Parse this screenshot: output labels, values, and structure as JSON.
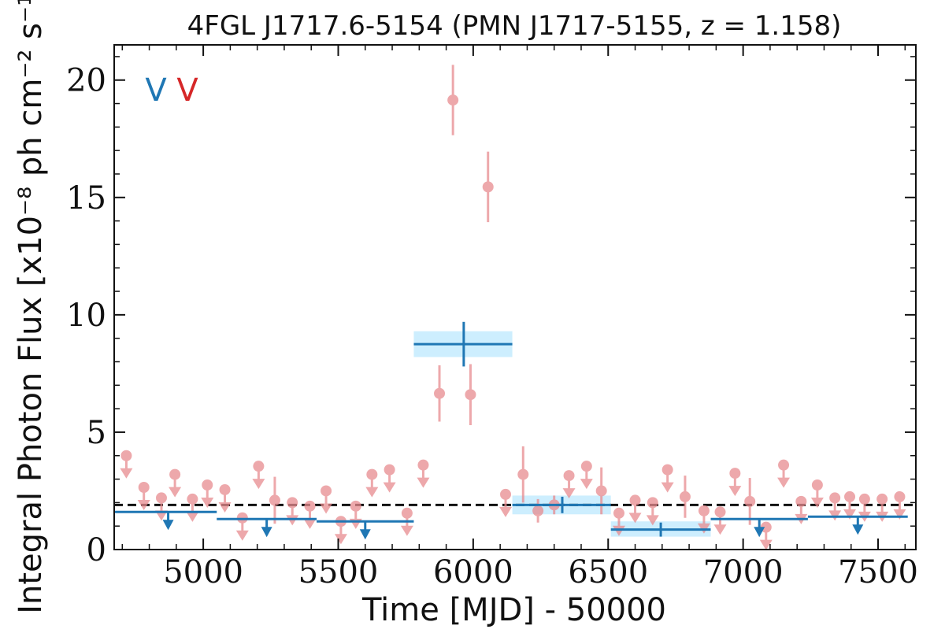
{
  "chart_data": {
    "type": "scatter",
    "title": "4FGL J1717.6-5154 (PMN J1717-5155, z = 1.158)",
    "xlabel": "Time [MJD] - 50000",
    "ylabel": "Integral Photon Flux [x10⁻⁸ ph cm⁻² s⁻¹]",
    "xlim": [
      4670,
      7640
    ],
    "ylim": [
      0,
      21.5
    ],
    "x_ticks": [
      5000,
      5500,
      6000,
      6500,
      7000,
      7500
    ],
    "x_tick_labels": [
      "5000",
      "5500",
      "6000",
      "6500",
      "7000",
      "7500"
    ],
    "y_ticks": [
      0,
      5,
      10,
      15,
      20
    ],
    "y_tick_labels": [
      "0",
      "5",
      "10",
      "15",
      "20"
    ],
    "legend": {
      "placement": "top-left",
      "entries": [
        {
          "label": "V",
          "color": "#1f77b4"
        },
        {
          "label": "V",
          "color": "#d62728"
        }
      ]
    },
    "reference_line": {
      "y": 1.9,
      "style": "dashed",
      "color": "#111111"
    },
    "colors": {
      "short_bin": "#e88b8f",
      "long_bin": "#1f77b4",
      "long_bin_band": "#cdeefe"
    },
    "series": [
      {
        "points": [
          {
            "x": 5875,
            "y": 6.65,
            "yerr": 1.2
          },
          {
            "x": 5925,
            "y": 19.15,
            "yerr": 1.5
          },
          {
            "x": 5990,
            "y": 6.6,
            "yerr": 1.3
          },
          {
            "x": 6055,
            "y": 15.45,
            "yerr": 1.5
          },
          {
            "x": 6185,
            "y": 3.2,
            "yerr": 1.2
          },
          {
            "x": 6240,
            "y": 1.65,
            "yerr": 0.5
          },
          {
            "x": 6300,
            "y": 1.9,
            "yerr": 0.4
          },
          {
            "x": 6475,
            "y": 2.5,
            "yerr": 1.0
          },
          {
            "x": 6785,
            "y": 2.25,
            "yerr": 0.9
          },
          {
            "x": 7025,
            "y": 2.05,
            "yerr": 1.0
          },
          {
            "x": 5265,
            "y": 2.1,
            "yerr": 1.0
          }
        ],
        "upper_limits": [
          {
            "x": 4715,
            "y": 4.0
          },
          {
            "x": 4780,
            "y": 2.65
          },
          {
            "x": 4845,
            "y": 2.2
          },
          {
            "x": 4895,
            "y": 3.2
          },
          {
            "x": 4960,
            "y": 2.15
          },
          {
            "x": 5015,
            "y": 2.75
          },
          {
            "x": 5080,
            "y": 2.55
          },
          {
            "x": 5145,
            "y": 1.35
          },
          {
            "x": 5205,
            "y": 3.55
          },
          {
            "x": 5330,
            "y": 2.0
          },
          {
            "x": 5395,
            "y": 1.85
          },
          {
            "x": 5455,
            "y": 2.5
          },
          {
            "x": 5510,
            "y": 1.2
          },
          {
            "x": 5565,
            "y": 1.85
          },
          {
            "x": 5625,
            "y": 3.2
          },
          {
            "x": 5690,
            "y": 3.4
          },
          {
            "x": 5755,
            "y": 1.55
          },
          {
            "x": 5815,
            "y": 3.6
          },
          {
            "x": 6120,
            "y": 2.35
          },
          {
            "x": 6355,
            "y": 3.15
          },
          {
            "x": 6420,
            "y": 3.55
          },
          {
            "x": 6540,
            "y": 1.55
          },
          {
            "x": 6600,
            "y": 2.1
          },
          {
            "x": 6665,
            "y": 2.0
          },
          {
            "x": 6720,
            "y": 3.4
          },
          {
            "x": 6855,
            "y": 1.65
          },
          {
            "x": 6915,
            "y": 1.6
          },
          {
            "x": 6970,
            "y": 3.25
          },
          {
            "x": 7085,
            "y": 0.95
          },
          {
            "x": 7150,
            "y": 3.6
          },
          {
            "x": 7215,
            "y": 2.05
          },
          {
            "x": 7275,
            "y": 2.75
          },
          {
            "x": 7340,
            "y": 2.2
          },
          {
            "x": 7395,
            "y": 2.25
          },
          {
            "x": 7450,
            "y": 2.15
          },
          {
            "x": 7515,
            "y": 2.15
          },
          {
            "x": 7580,
            "y": 2.25
          }
        ]
      },
      {
        "bins": [
          {
            "x0": 4670,
            "x1": 5050,
            "y": 1.6,
            "upper_limit": true,
            "marker_x": 4870
          },
          {
            "x0": 5050,
            "x1": 5420,
            "y": 1.3,
            "upper_limit": true,
            "marker_x": 5235
          },
          {
            "x0": 5420,
            "x1": 5780,
            "y": 1.2,
            "upper_limit": true,
            "marker_x": 5600
          },
          {
            "x0": 5780,
            "x1": 6145,
            "y": 8.75,
            "upper_limit": false,
            "xc": 5965,
            "ylo": 8.2,
            "yhi": 9.3,
            "yerr": 0.95
          },
          {
            "x0": 6145,
            "x1": 6510,
            "y": 1.9,
            "upper_limit": false,
            "xc": 6330,
            "ylo": 1.5,
            "yhi": 2.3,
            "yerr": 0.35
          },
          {
            "x0": 6510,
            "x1": 6880,
            "y": 0.85,
            "upper_limit": false,
            "xc": 6695,
            "ylo": 0.55,
            "yhi": 1.2,
            "yerr": 0.3
          },
          {
            "x0": 6880,
            "x1": 7240,
            "y": 1.3,
            "upper_limit": true,
            "marker_x": 7060
          },
          {
            "x0": 7240,
            "x1": 7610,
            "y": 1.4,
            "upper_limit": true,
            "marker_x": 7425
          }
        ]
      }
    ]
  }
}
